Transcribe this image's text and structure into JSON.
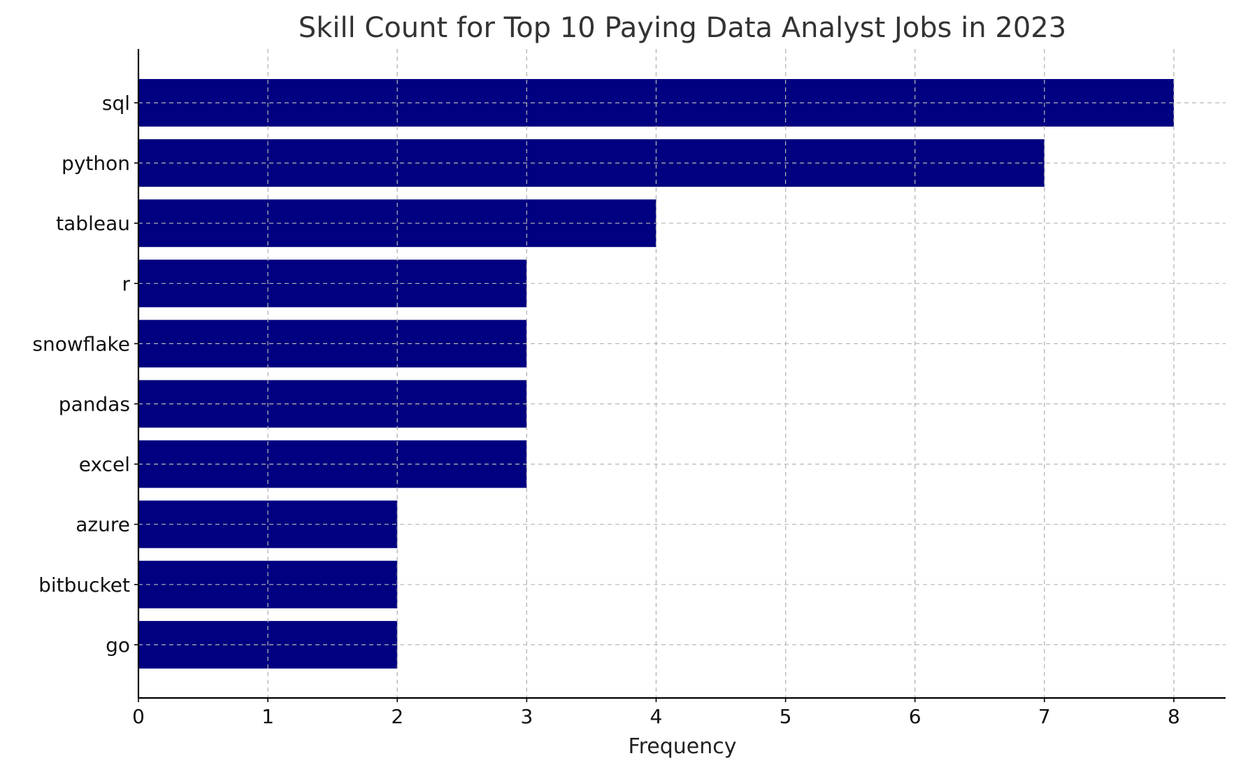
{
  "chart_data": {
    "type": "bar",
    "orientation": "horizontal",
    "title": "Skill Count for Top 10 Paying Data Analyst Jobs in 2023",
    "xlabel": "Frequency",
    "ylabel": "",
    "categories": [
      "sql",
      "python",
      "tableau",
      "r",
      "snowflake",
      "pandas",
      "excel",
      "azure",
      "bitbucket",
      "go"
    ],
    "values": [
      8,
      7,
      4,
      3,
      3,
      3,
      3,
      2,
      2,
      2
    ],
    "xlim": [
      0,
      8.4
    ],
    "xticks": [
      0,
      1,
      2,
      3,
      4,
      5,
      6,
      7,
      8
    ],
    "grid": true,
    "bar_color": "#000080"
  }
}
